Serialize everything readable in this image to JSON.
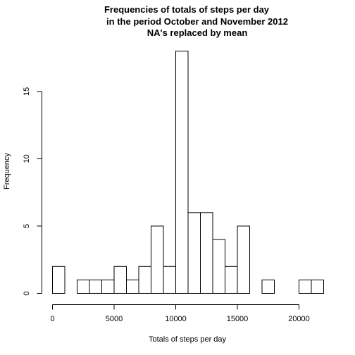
{
  "chart_data": {
    "type": "bar",
    "title_lines": [
      "Frequencies of totals of steps per day",
      "in the period October and November 2012",
      "NA's replaced by mean"
    ],
    "xlabel": "Totals of steps per day",
    "ylabel": "Frequency",
    "bin_width": 1000,
    "bins_start": [
      0,
      1000,
      2000,
      3000,
      4000,
      5000,
      6000,
      7000,
      8000,
      9000,
      10000,
      11000,
      12000,
      13000,
      14000,
      15000,
      16000,
      17000,
      18000,
      19000,
      20000,
      21000
    ],
    "values": [
      2,
      0,
      1,
      1,
      1,
      2,
      1,
      2,
      5,
      2,
      18,
      6,
      6,
      4,
      2,
      5,
      0,
      1,
      0,
      0,
      1,
      1
    ],
    "xlim": [
      0,
      22000
    ],
    "ylim": [
      0,
      18
    ],
    "x_ticks": [
      0,
      5000,
      10000,
      15000,
      20000
    ],
    "x_tick_labels": [
      "0",
      "5000",
      "10000",
      "15000",
      "20000"
    ],
    "y_ticks": [
      0,
      5,
      10,
      15
    ],
    "y_tick_labels": [
      "0",
      "5",
      "10",
      "15"
    ],
    "grid": false,
    "legend": "none",
    "bar_fill": "#ffffff",
    "bar_stroke": "#000000"
  }
}
